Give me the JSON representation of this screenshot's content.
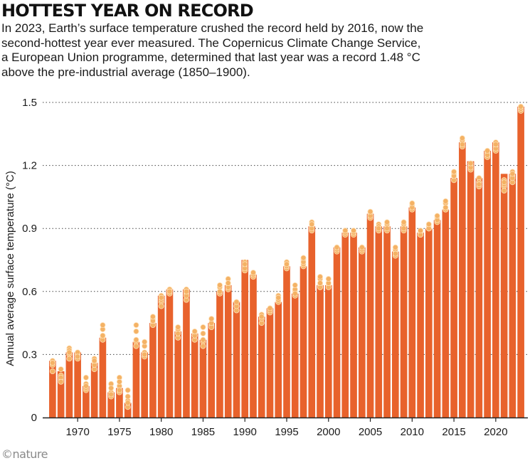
{
  "header": {
    "title": "HOTTEST YEAR ON RECORD",
    "subtitle": "In 2023, Earth’s surface temperature crushed the record held by 2016, now the second-hottest year ever measured. The Copernicus Climate Change Service, a European Union programme, determined that last year was a record 1.48 °C above the pre-industrial average (1850–1900)."
  },
  "footer": {
    "credit": "©nature"
  },
  "colors": {
    "bar": "#e8622c",
    "dot": "#f4b265",
    "dot_stroke": "#ffe3bc",
    "grid": "#444444",
    "axis": "#222222"
  },
  "chart_data": {
    "type": "bar",
    "ylabel": "Annual average surface temperature (°C)",
    "ylim": [
      0,
      1.5
    ],
    "yticks": [
      0,
      0.3,
      0.6,
      0.9,
      1.2,
      1.5
    ],
    "ytick_labels": [
      "0",
      "0.3",
      "0.6",
      "0.9",
      "1.2",
      "1.5"
    ],
    "xticks": [
      1970,
      1975,
      1980,
      1985,
      1990,
      1995,
      2000,
      2005,
      2010,
      2015,
      2020
    ],
    "grid": "horizontal dotted",
    "years": [
      1967,
      1968,
      1969,
      1970,
      1971,
      1972,
      1973,
      1974,
      1975,
      1976,
      1977,
      1978,
      1979,
      1980,
      1981,
      1982,
      1983,
      1984,
      1985,
      1986,
      1987,
      1988,
      1989,
      1990,
      1991,
      1992,
      1993,
      1994,
      1995,
      1996,
      1997,
      1998,
      1999,
      2000,
      2001,
      2002,
      2003,
      2004,
      2005,
      2006,
      2007,
      2008,
      2009,
      2010,
      2011,
      2012,
      2013,
      2014,
      2015,
      2016,
      2017,
      2018,
      2019,
      2020,
      2021,
      2022,
      2023
    ],
    "values": [
      0.27,
      0.22,
      0.31,
      0.31,
      0.15,
      0.26,
      0.38,
      0.12,
      0.14,
      0.07,
      0.36,
      0.31,
      0.45,
      0.58,
      0.61,
      0.41,
      0.61,
      0.4,
      0.37,
      0.45,
      0.6,
      0.63,
      0.55,
      0.75,
      0.68,
      0.48,
      0.52,
      0.55,
      0.72,
      0.59,
      0.72,
      0.91,
      0.63,
      0.63,
      0.81,
      0.88,
      0.88,
      0.81,
      0.97,
      0.91,
      0.91,
      0.79,
      0.91,
      1.0,
      0.88,
      0.9,
      0.94,
      0.99,
      1.14,
      1.31,
      1.22,
      1.14,
      1.27,
      1.31,
      1.16,
      1.16,
      1.48
    ],
    "datasets": [
      [
        0.27,
        0.23,
        0.3,
        0.31,
        0.16,
        0.26,
        0.38,
        0.12,
        0.15,
        0.08,
        0.36,
        0.31,
        0.45,
        0.58,
        0.61,
        0.41,
        0.61,
        0.39,
        0.36,
        0.44,
        0.6,
        0.63,
        0.55,
        0.74,
        0.68,
        0.48,
        0.52,
        0.55,
        0.72,
        0.6,
        0.72,
        0.91,
        0.63,
        0.63,
        0.81,
        0.88,
        0.88,
        0.81,
        0.97,
        0.92,
        0.91,
        0.79,
        0.91,
        1.01,
        0.88,
        0.9,
        0.94,
        0.99,
        1.15,
        1.31,
        1.2,
        1.14,
        1.27,
        1.31,
        1.13,
        1.17,
        1.48
      ],
      [
        0.25,
        0.2,
        0.33,
        0.3,
        0.19,
        0.28,
        0.42,
        0.16,
        0.19,
        0.13,
        0.41,
        0.34,
        0.47,
        0.55,
        0.59,
        0.42,
        0.59,
        0.4,
        0.4,
        0.47,
        0.62,
        0.66,
        0.53,
        0.72,
        0.68,
        0.49,
        0.51,
        0.58,
        0.74,
        0.61,
        0.75,
        0.93,
        0.66,
        0.66,
        0.8,
        0.89,
        0.87,
        0.8,
        0.96,
        0.9,
        0.92,
        0.8,
        0.92,
        1.0,
        0.87,
        0.91,
        0.95,
        1.02,
        1.16,
        1.32,
        1.19,
        1.12,
        1.26,
        1.29,
        1.1,
        1.15,
        1.47
      ],
      [
        0.22,
        0.18,
        0.28,
        0.28,
        0.13,
        0.23,
        0.37,
        0.1,
        0.12,
        0.05,
        0.34,
        0.29,
        0.44,
        0.53,
        0.6,
        0.38,
        0.56,
        0.37,
        0.34,
        0.43,
        0.59,
        0.61,
        0.51,
        0.7,
        0.67,
        0.45,
        0.5,
        0.55,
        0.71,
        0.58,
        0.73,
        0.89,
        0.62,
        0.62,
        0.79,
        0.87,
        0.88,
        0.79,
        0.95,
        0.89,
        0.89,
        0.77,
        0.89,
        0.99,
        0.88,
        0.9,
        0.93,
        0.99,
        1.13,
        1.29,
        1.18,
        1.1,
        1.24,
        1.27,
        1.08,
        1.12,
        1.46
      ],
      [
        0.26,
        0.19,
        0.32,
        0.31,
        0.14,
        0.25,
        0.39,
        0.11,
        0.13,
        0.07,
        0.37,
        0.3,
        0.46,
        0.56,
        0.61,
        0.4,
        0.58,
        0.39,
        0.37,
        0.45,
        0.6,
        0.62,
        0.53,
        0.71,
        0.68,
        0.47,
        0.51,
        0.56,
        0.72,
        0.59,
        0.74,
        0.9,
        0.64,
        0.64,
        0.8,
        0.88,
        0.88,
        0.8,
        0.96,
        0.91,
        0.9,
        0.78,
        0.9,
        1.0,
        0.87,
        0.9,
        0.94,
        1.0,
        1.15,
        1.3,
        1.19,
        1.12,
        1.25,
        1.28,
        1.11,
        1.14,
        1.47
      ],
      [
        0.26,
        0.17,
        0.31,
        0.29,
        0.15,
        0.27,
        0.44,
        0.14,
        0.17,
        0.1,
        0.44,
        0.36,
        0.48,
        0.57,
        0.6,
        0.43,
        0.6,
        0.41,
        0.43,
        0.47,
        0.63,
        0.64,
        0.55,
        0.73,
        0.69,
        0.48,
        0.52,
        0.57,
        0.73,
        0.63,
        0.76,
        0.92,
        0.67,
        0.66,
        0.81,
        0.89,
        0.89,
        0.81,
        0.98,
        0.9,
        0.93,
        0.81,
        0.93,
        1.02,
        0.89,
        0.92,
        0.96,
        1.03,
        1.17,
        1.33,
        1.21,
        1.11,
        1.27,
        1.3,
        1.12,
        1.16,
        1.48
      ]
    ]
  }
}
